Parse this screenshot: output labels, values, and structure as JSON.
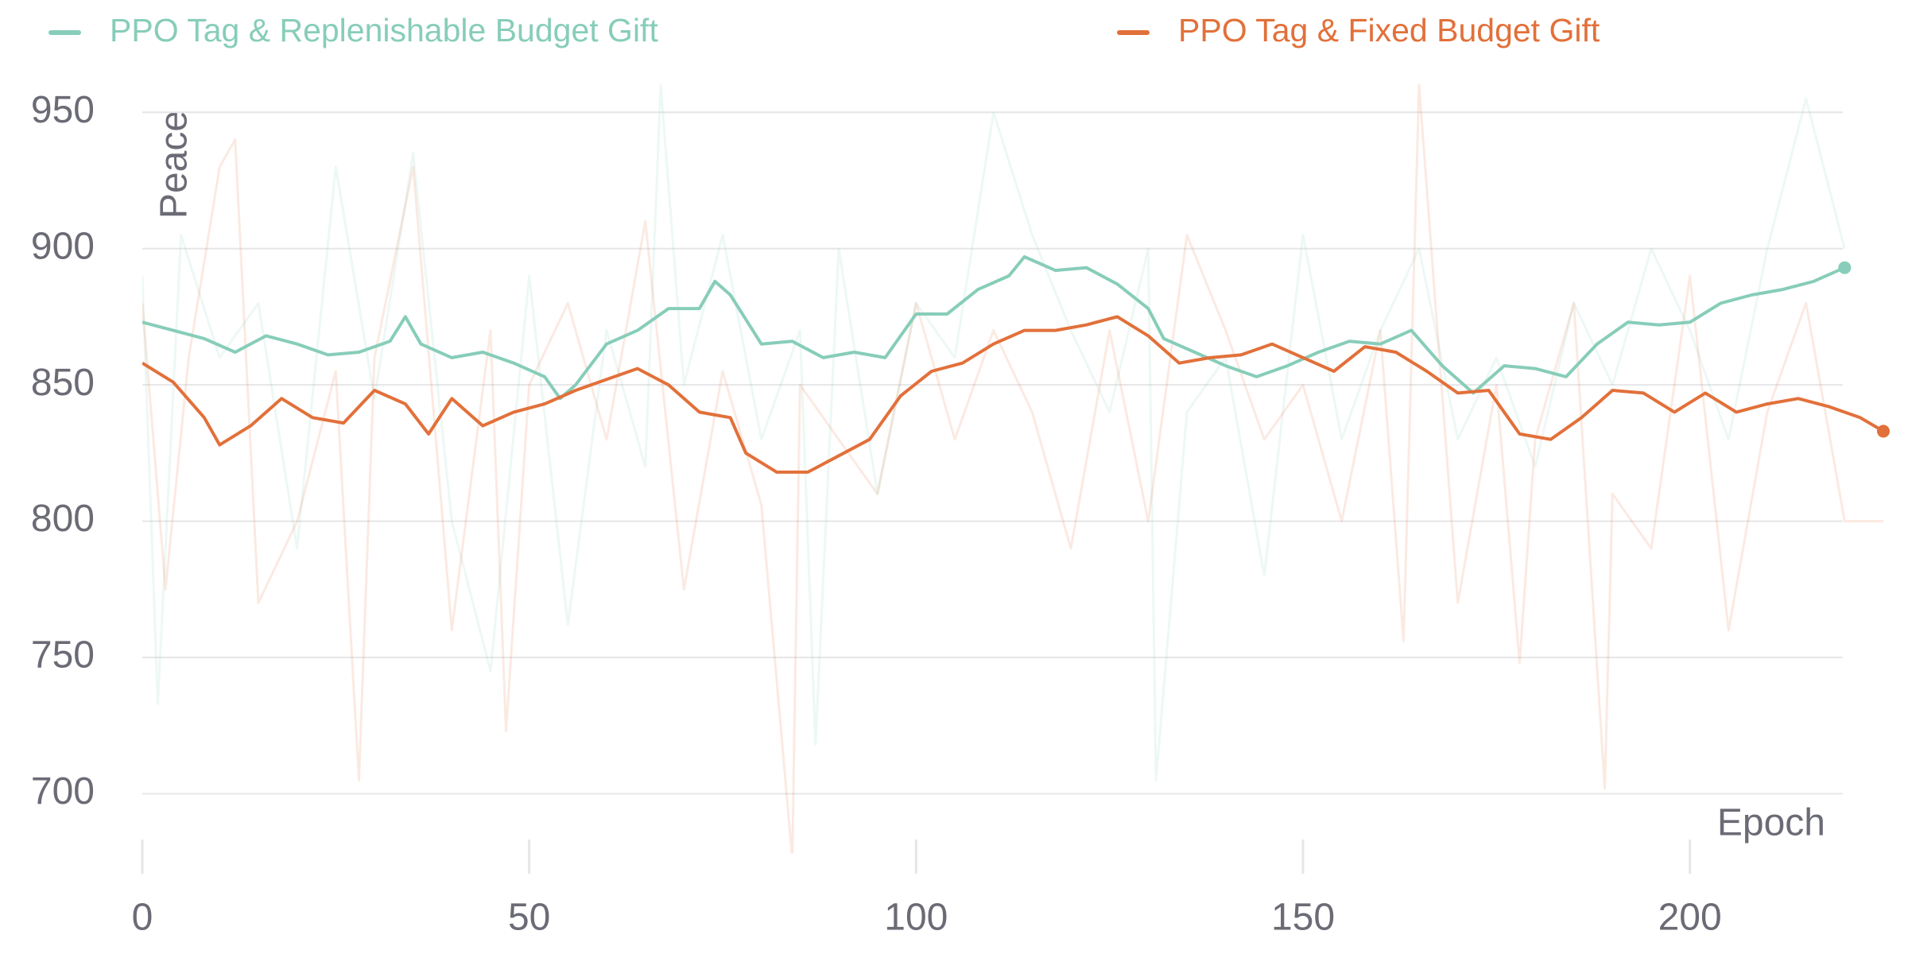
{
  "chart_data": {
    "type": "line",
    "x_label": "Epoch",
    "y_label": "Peace",
    "xlim": [
      0,
      225
    ],
    "xticks": [
      0,
      50,
      100,
      150,
      200
    ],
    "ylim": [
      680,
      960
    ],
    "yticks": [
      700,
      750,
      800,
      850,
      900,
      950
    ],
    "grid": true,
    "legend": "top",
    "series": [
      {
        "name": "PPO Tag & Replenishable Budget Gift",
        "color": "#87cdb9",
        "x": [
          0,
          4,
          8,
          12,
          16,
          20,
          24,
          28,
          32,
          34,
          36,
          40,
          44,
          48,
          52,
          54,
          56,
          60,
          64,
          68,
          72,
          74,
          76,
          80,
          84,
          88,
          92,
          96,
          100,
          104,
          108,
          112,
          114,
          118,
          122,
          126,
          130,
          132,
          136,
          140,
          144,
          148,
          152,
          156,
          160,
          164,
          168,
          172,
          176,
          180,
          184,
          188,
          192,
          196,
          200,
          204,
          208,
          212,
          216,
          220
        ],
        "values": [
          873,
          870,
          867,
          862,
          868,
          865,
          861,
          862,
          866,
          875,
          865,
          860,
          862,
          858,
          853,
          845,
          850,
          865,
          870,
          878,
          878,
          888,
          883,
          865,
          866,
          860,
          862,
          860,
          876,
          876,
          885,
          890,
          897,
          892,
          893,
          887,
          878,
          867,
          862,
          857,
          853,
          857,
          862,
          866,
          865,
          870,
          857,
          847,
          857,
          856,
          853,
          865,
          873,
          872,
          873,
          880,
          883,
          885,
          888,
          893
        ],
        "raw": {
          "x": [
            0,
            2,
            5,
            10,
            15,
            20,
            25,
            30,
            35,
            40,
            45,
            50,
            55,
            60,
            65,
            67,
            70,
            75,
            80,
            85,
            87,
            90,
            95,
            100,
            105,
            110,
            115,
            120,
            125,
            130,
            131,
            135,
            140,
            145,
            150,
            155,
            160,
            165,
            170,
            175,
            180,
            185,
            190,
            195,
            200,
            205,
            210,
            215,
            220
          ],
          "values": [
            890,
            733,
            905,
            860,
            880,
            790,
            930,
            845,
            935,
            800,
            745,
            890,
            762,
            870,
            820,
            960,
            850,
            905,
            830,
            870,
            718,
            900,
            810,
            880,
            860,
            950,
            905,
            870,
            840,
            900,
            705,
            840,
            860,
            780,
            905,
            830,
            870,
            900,
            830,
            860,
            820,
            880,
            850,
            900,
            870,
            830,
            900,
            955,
            900
          ]
        }
      },
      {
        "name": "PPO Tag & Fixed Budget Gift",
        "color": "#e2703a",
        "x": [
          0,
          4,
          8,
          10,
          14,
          18,
          22,
          26,
          30,
          34,
          37,
          40,
          44,
          48,
          52,
          56,
          60,
          64,
          68,
          72,
          76,
          78,
          82,
          86,
          90,
          94,
          98,
          102,
          106,
          110,
          114,
          118,
          122,
          126,
          130,
          134,
          138,
          142,
          146,
          150,
          154,
          158,
          162,
          166,
          170,
          174,
          178,
          182,
          186,
          190,
          194,
          198,
          202,
          206,
          210,
          214,
          218,
          222,
          225
        ],
        "values": [
          858,
          851,
          838,
          828,
          835,
          845,
          838,
          836,
          848,
          843,
          832,
          845,
          835,
          840,
          843,
          848,
          852,
          856,
          850,
          840,
          838,
          825,
          818,
          818,
          824,
          830,
          846,
          855,
          858,
          865,
          870,
          870,
          872,
          875,
          868,
          858,
          860,
          861,
          865,
          860,
          855,
          864,
          862,
          855,
          847,
          848,
          832,
          830,
          838,
          848,
          847,
          840,
          847,
          840,
          843,
          845,
          842,
          838,
          833
        ],
        "raw": {
          "x": [
            0,
            3,
            6,
            10,
            12,
            15,
            20,
            25,
            28,
            30,
            35,
            40,
            45,
            47,
            50,
            55,
            60,
            65,
            70,
            75,
            80,
            84,
            85,
            90,
            95,
            100,
            105,
            110,
            115,
            120,
            125,
            130,
            135,
            140,
            145,
            150,
            155,
            160,
            163,
            165,
            170,
            175,
            178,
            180,
            185,
            189,
            190,
            195,
            200,
            205,
            210,
            215,
            220,
            225
          ],
          "values": [
            880,
            775,
            860,
            930,
            940,
            770,
            800,
            855,
            705,
            860,
            930,
            760,
            870,
            723,
            850,
            880,
            830,
            910,
            775,
            855,
            806,
            676,
            850,
            830,
            810,
            880,
            830,
            870,
            840,
            790,
            870,
            800,
            905,
            870,
            830,
            850,
            800,
            870,
            756,
            960,
            770,
            850,
            748,
            830,
            880,
            702,
            810,
            790,
            890,
            760,
            840,
            880,
            800,
            800
          ]
        }
      }
    ]
  }
}
